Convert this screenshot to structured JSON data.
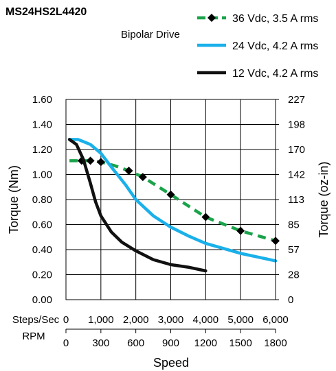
{
  "chart_data": {
    "type": "line",
    "title": "MS24HS2L4420",
    "subtitle": "Bipolar Drive",
    "xlabel": "Speed",
    "ylabel": "Torque (Nm)",
    "y2label": "Torque (oz-in)",
    "xlim": [
      0,
      6000
    ],
    "ylim": [
      0,
      1.6
    ],
    "x_ticks": [
      0,
      1000,
      2000,
      3000,
      4000,
      5000,
      6000
    ],
    "x_tick_labels": [
      "0",
      "1,000",
      "2,000",
      "3,000",
      "4,000",
      "5,000",
      "6,000"
    ],
    "x_axis_name": "Steps/Sec",
    "rpm_axis_name": "RPM",
    "rpm_ticks": [
      0,
      300,
      600,
      900,
      1200,
      1500,
      1800
    ],
    "rpm_tick_labels": [
      "0",
      "300",
      "600",
      "900",
      "1200",
      "1500",
      "1800"
    ],
    "y_ticks": [
      0,
      0.2,
      0.4,
      0.6,
      0.8,
      1.0,
      1.2,
      1.4,
      1.6
    ],
    "y_tick_labels": [
      "0.00",
      "0.20",
      "0.40",
      "0.60",
      "0.80",
      "1.00",
      "1.20",
      "1.40",
      "1.60"
    ],
    "y2_tick_labels": [
      "0",
      "28",
      "57",
      "85",
      "113",
      "142",
      "170",
      "198",
      "227"
    ],
    "grid": true,
    "legend_position": "top-right",
    "series": [
      {
        "name": "36 Vdc, 3.5 A rms",
        "color": "#1aa34a",
        "style": "dashed-diamond",
        "x": [
          100,
          450,
          700,
          1000,
          1400,
          1800,
          2200,
          3000,
          4000,
          5000,
          6000
        ],
        "y": [
          1.11,
          1.11,
          1.11,
          1.1,
          1.07,
          1.03,
          0.98,
          0.84,
          0.66,
          0.55,
          0.47
        ],
        "marker_x": [
          450,
          700,
          1000,
          1800,
          2200,
          3000,
          4000,
          5000,
          6000
        ],
        "marker_y": [
          1.11,
          1.11,
          1.1,
          1.03,
          0.98,
          0.84,
          0.66,
          0.55,
          0.47
        ]
      },
      {
        "name": "24 Vdc, 4.2 A rms",
        "color": "#1ab0ea",
        "style": "solid",
        "x": [
          100,
          350,
          700,
          1000,
          1300,
          1700,
          2000,
          2500,
          3000,
          3500,
          4000,
          4500,
          5000,
          5500,
          6000
        ],
        "y": [
          1.28,
          1.28,
          1.24,
          1.17,
          1.06,
          0.92,
          0.8,
          0.67,
          0.58,
          0.51,
          0.45,
          0.41,
          0.37,
          0.34,
          0.31
        ]
      },
      {
        "name": "12 Vdc, 4.2 A rms",
        "color": "#111111",
        "style": "solid",
        "x": [
          100,
          300,
          500,
          700,
          850,
          1000,
          1300,
          1600,
          2000,
          2500,
          3000,
          3500,
          4000
        ],
        "y": [
          1.28,
          1.24,
          1.12,
          0.93,
          0.78,
          0.67,
          0.54,
          0.46,
          0.39,
          0.32,
          0.28,
          0.26,
          0.23
        ]
      }
    ]
  }
}
